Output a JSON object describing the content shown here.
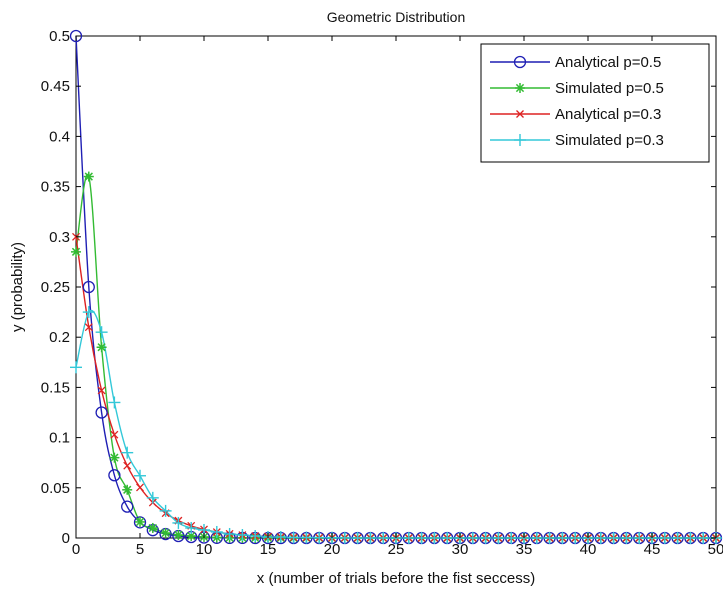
{
  "chart_data": {
    "type": "line",
    "title": "Geometric Distribution",
    "xlabel": "x (number of trials before the fist seccess)",
    "ylabel": "y (probability)",
    "xlim": [
      0,
      50
    ],
    "ylim": [
      0,
      0.5
    ],
    "xticks": [
      0,
      5,
      10,
      15,
      20,
      25,
      30,
      35,
      40,
      45,
      50
    ],
    "yticks": [
      0,
      0.05,
      0.1,
      0.15,
      0.2,
      0.25,
      0.3,
      0.35,
      0.4,
      0.45,
      0.5
    ],
    "ytick_labels": [
      "0",
      "0.05",
      "0.1",
      "0.15",
      "0.2",
      "0.25",
      "0.3",
      "0.35",
      "0.4",
      "0.45",
      "0.5"
    ],
    "grid": false,
    "legend_position": "top-right",
    "series": [
      {
        "name": "Analytical p=0.5",
        "color": "#1f1fb4",
        "marker": "circle",
        "x": [
          0,
          1,
          2,
          3,
          4,
          5,
          6,
          7,
          8,
          9,
          10,
          11,
          12,
          13,
          14,
          15,
          16,
          17,
          18,
          19,
          20,
          21,
          22,
          23,
          24,
          25,
          26,
          27,
          28,
          29,
          30,
          31,
          32,
          33,
          34,
          35,
          36,
          37,
          38,
          39,
          40,
          41,
          42,
          43,
          44,
          45,
          46,
          47,
          48,
          49,
          50
        ],
        "y": [
          0.5,
          0.25,
          0.125,
          0.0625,
          0.03125,
          0.0156,
          0.0078,
          0.0039,
          0.002,
          0.001,
          0.0005,
          0.0002,
          0.0001,
          0.0001,
          0,
          0,
          0,
          0,
          0,
          0,
          0,
          0,
          0,
          0,
          0,
          0,
          0,
          0,
          0,
          0,
          0,
          0,
          0,
          0,
          0,
          0,
          0,
          0,
          0,
          0,
          0,
          0,
          0,
          0,
          0,
          0,
          0,
          0,
          0,
          0,
          0
        ]
      },
      {
        "name": "Simulated p=0.5",
        "color": "#33bb33",
        "marker": "asterisk",
        "x": [
          0,
          1,
          2,
          3,
          4,
          5,
          6,
          7,
          8,
          9,
          10,
          11,
          12,
          13,
          14,
          15,
          16,
          17,
          18,
          19,
          20,
          21,
          22,
          23,
          24,
          25,
          26,
          27,
          28,
          29,
          30,
          31,
          32,
          33,
          34,
          35,
          36,
          37,
          38,
          39,
          40,
          41,
          42,
          43,
          44,
          45,
          46,
          47,
          48,
          49,
          50
        ],
        "y": [
          0.285,
          0.36,
          0.19,
          0.08,
          0.048,
          0.016,
          0.01,
          0.005,
          0.003,
          0.002,
          0.001,
          0.0005,
          0.0002,
          0.0001,
          0,
          0,
          0,
          0,
          0,
          0,
          0,
          0,
          0,
          0,
          0,
          0,
          0,
          0,
          0,
          0,
          0,
          0,
          0,
          0,
          0,
          0,
          0,
          0,
          0,
          0,
          0,
          0,
          0,
          0,
          0,
          0,
          0,
          0,
          0,
          0,
          0
        ]
      },
      {
        "name": "Analytical p=0.3",
        "color": "#dd2222",
        "marker": "x",
        "x": [
          0,
          1,
          2,
          3,
          4,
          5,
          6,
          7,
          8,
          9,
          10,
          11,
          12,
          13,
          14,
          15,
          16,
          17,
          18,
          19,
          20,
          21,
          22,
          23,
          24,
          25,
          26,
          27,
          28,
          29,
          30,
          31,
          32,
          33,
          34,
          35,
          36,
          37,
          38,
          39,
          40,
          41,
          42,
          43,
          44,
          45,
          46,
          47,
          48,
          49,
          50
        ],
        "y": [
          0.3,
          0.21,
          0.147,
          0.1029,
          0.072,
          0.0504,
          0.0353,
          0.0247,
          0.0173,
          0.0121,
          0.0085,
          0.0059,
          0.0042,
          0.0029,
          0.002,
          0.0014,
          0.001,
          0.0007,
          0.0005,
          0.0003,
          0.0002,
          0.0002,
          0.0001,
          0.0001,
          0,
          0,
          0,
          0,
          0,
          0,
          0,
          0,
          0,
          0,
          0,
          0,
          0,
          0,
          0,
          0,
          0,
          0,
          0,
          0,
          0,
          0,
          0,
          0,
          0,
          0,
          0
        ]
      },
      {
        "name": "Simulated p=0.3",
        "color": "#33c8d8",
        "marker": "plus",
        "x": [
          0,
          1,
          2,
          3,
          4,
          5,
          6,
          7,
          8,
          9,
          10,
          11,
          12,
          13,
          14,
          15,
          16,
          17,
          18,
          19,
          20,
          21,
          22,
          23,
          24,
          25,
          26,
          27,
          28,
          29,
          30,
          31,
          32,
          33,
          34,
          35,
          36,
          37,
          38,
          39,
          40,
          41,
          42,
          43,
          44,
          45,
          46,
          47,
          48,
          49,
          50
        ],
        "y": [
          0.17,
          0.225,
          0.205,
          0.135,
          0.085,
          0.062,
          0.04,
          0.027,
          0.015,
          0.01,
          0.008,
          0.006,
          0.004,
          0.003,
          0.002,
          0.001,
          0.001,
          0.0005,
          0.0005,
          0.0003,
          0.0002,
          0.0001,
          0,
          0,
          0,
          0,
          0,
          0,
          0,
          0,
          0,
          0,
          0,
          0,
          0,
          0,
          0,
          0,
          0,
          0,
          0,
          0,
          0,
          0,
          0,
          0,
          0,
          0,
          0,
          0,
          0
        ]
      }
    ]
  }
}
